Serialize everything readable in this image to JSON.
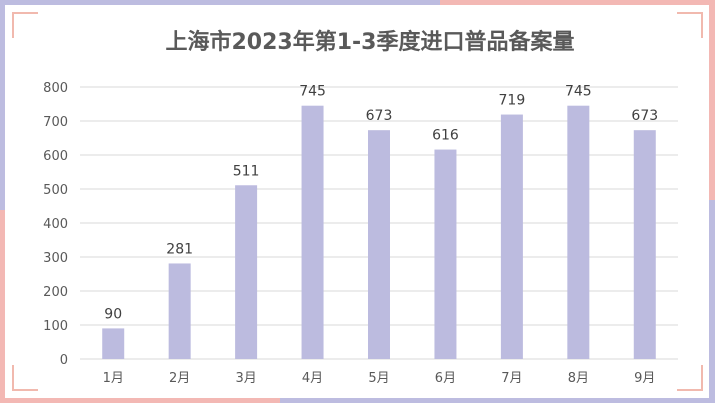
{
  "chart_data": {
    "type": "bar",
    "title": "上海市2023年第1-3季度进口普品备案量",
    "categories": [
      "1月",
      "2月",
      "3月",
      "4月",
      "5月",
      "6月",
      "7月",
      "8月",
      "9月"
    ],
    "values": [
      90,
      281,
      511,
      745,
      673,
      616,
      719,
      745,
      673
    ],
    "ylim": [
      0,
      800
    ],
    "yticks": [
      0,
      100,
      200,
      300,
      400,
      500,
      600,
      700,
      800
    ],
    "grid": true,
    "legend": "none"
  },
  "colors": {
    "bar": "#bcbbdf",
    "grid": "#d9d9d9",
    "frame_lavender": "#bdbce0",
    "frame_pink": "#f3b8b4"
  }
}
